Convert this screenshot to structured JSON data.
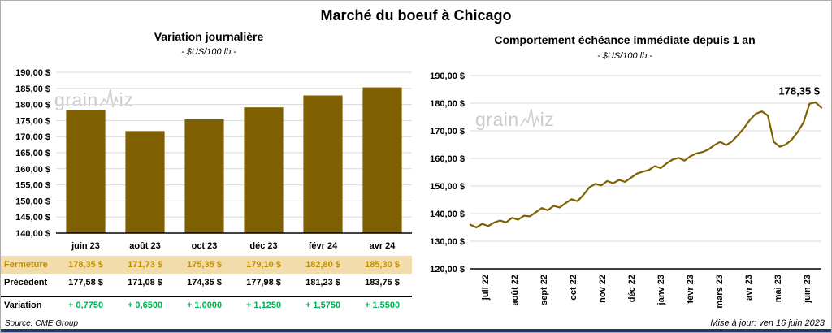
{
  "page_title": "Marché du boeuf à Chicago",
  "source_note": "Source: CME Group",
  "update_note": "Mise à jour: ven 16 juin 2023",
  "watermark": {
    "prefix": "grain",
    "suffix": "iz"
  },
  "colors": {
    "series_gold": "#7F6000",
    "table_highlight_bg": "#F2DCAC",
    "table_highlight_text": "#BF8F00",
    "variation_green": "#00B050",
    "footer_navy": "#1F3864",
    "gridline_grey": "#D9D9D9",
    "watermark_grey": "#CBCBCB"
  },
  "chart_data": [
    {
      "type": "bar",
      "title": "Variation journalière",
      "subtitle": "- $US/100 lb -",
      "categories": [
        "juin 23",
        "août 23",
        "oct 23",
        "déc 23",
        "févr 24",
        "avr 24"
      ],
      "values": [
        178.35,
        171.73,
        175.35,
        179.1,
        182.8,
        185.3
      ],
      "ylim": [
        140,
        190
      ],
      "ytick_step": 5,
      "ytick_format": "0,00 $",
      "grid": true,
      "legend": "none",
      "color": "#7F6000"
    },
    {
      "type": "line",
      "title": "Comportement échéance immédiate depuis 1 an",
      "subtitle": "- $US/100 lb -",
      "x_labels": [
        "juil 22",
        "août 22",
        "sept 22",
        "oct 22",
        "nov 22",
        "déc 22",
        "janv 23",
        "févr 23",
        "mars 23",
        "avr 23",
        "mai 23",
        "juin 23"
      ],
      "values": [
        136.0,
        135.0,
        136.3,
        135.5,
        136.8,
        137.5,
        136.8,
        138.5,
        137.8,
        139.2,
        139.0,
        140.5,
        142.0,
        141.2,
        142.8,
        142.2,
        143.8,
        145.2,
        144.5,
        146.8,
        149.5,
        150.8,
        150.2,
        151.8,
        151.0,
        152.2,
        151.5,
        153.0,
        154.5,
        155.2,
        155.8,
        157.2,
        156.5,
        158.2,
        159.6,
        160.2,
        159.2,
        160.8,
        161.8,
        162.3,
        163.2,
        164.8,
        166.0,
        164.8,
        166.2,
        168.5,
        171.0,
        174.0,
        176.2,
        177.0,
        175.5,
        166.0,
        164.2,
        165.0,
        166.8,
        169.5,
        173.0,
        179.8,
        180.3,
        178.35
      ],
      "ylim": [
        120,
        190
      ],
      "ytick_step": 10,
      "ytick_format": "0,00 $",
      "grid": true,
      "legend": "none",
      "color": "#7F6000",
      "annotation": "178,35 $",
      "annotation_value": 178.35,
      "last_value": 178.35
    }
  ],
  "price_table": {
    "rows": [
      {
        "key": "close",
        "label": "Fermeture",
        "values": [
          "178,35 $",
          "171,73 $",
          "175,35 $",
          "179,10 $",
          "182,80 $",
          "185,30 $"
        ]
      },
      {
        "key": "previous",
        "label": "Précédent",
        "values": [
          "177,58 $",
          "171,08 $",
          "174,35 $",
          "177,98 $",
          "181,23 $",
          "183,75 $"
        ]
      },
      {
        "key": "variation",
        "label": "Variation",
        "values": [
          "+ 0,7750",
          "+ 0,6500",
          "+ 1,0000",
          "+ 1,1250",
          "+ 1,5750",
          "+ 1,5500"
        ]
      }
    ]
  }
}
